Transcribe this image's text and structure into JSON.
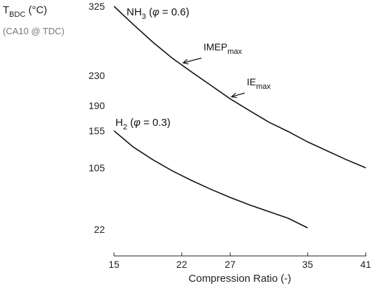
{
  "chart_data": {
    "type": "line",
    "xlabel": "Compression Ratio (-)",
    "ylabel": {
      "main": "T",
      "main_sub": "BDC",
      "main_unit": " (°C)",
      "secondary": "(CA10 @ TDC)"
    },
    "x_ticks": [
      15,
      22,
      27,
      35,
      41
    ],
    "y_ticks": [
      325,
      230,
      190,
      155,
      105,
      22
    ],
    "xlim": [
      15,
      41
    ],
    "series": [
      {
        "label_main": "NH",
        "label_sub": "3",
        "label_rest": " (",
        "label_phi": "φ",
        "label_tail": " = 0.6)",
        "x": [
          15,
          17,
          19,
          21,
          23,
          25,
          27,
          29,
          31,
          33,
          35,
          37,
          39,
          41
        ],
        "y": [
          325,
          300,
          276,
          254,
          235,
          217,
          199,
          183,
          167,
          154,
          140,
          128,
          116,
          105
        ]
      },
      {
        "label_main": "H",
        "label_sub": "2",
        "label_rest": " (",
        "label_phi": "φ",
        "label_tail": " = 0.3)",
        "x": [
          15,
          17,
          19,
          21,
          23,
          25,
          27,
          29,
          31,
          33,
          35
        ],
        "y": [
          155,
          133,
          116,
          101,
          88,
          76,
          65,
          55,
          46,
          37,
          24
        ]
      }
    ],
    "annotations": [
      {
        "text": "IMEP",
        "sub": "max",
        "x": 22,
        "series": 0
      },
      {
        "text": "IE",
        "sub": "max",
        "x": 27,
        "series": 0
      }
    ]
  }
}
